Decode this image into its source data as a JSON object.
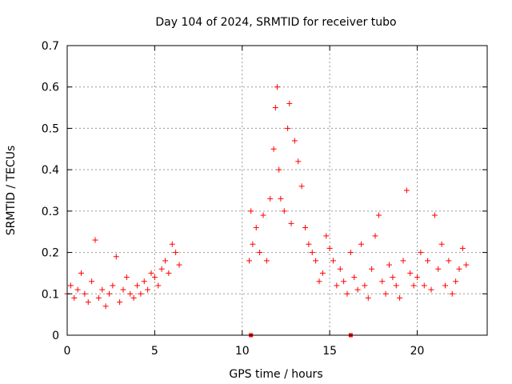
{
  "chart_data": {
    "type": "scatter",
    "title": "Day 104 of 2024, SRMTID for receiver tubo",
    "xlabel": "GPS time / hours",
    "ylabel": "SRMTID / TECUs",
    "xlim": [
      0,
      24
    ],
    "ylim": [
      0,
      0.7
    ],
    "x_ticks": [
      "0",
      "5",
      "10",
      "15",
      "20"
    ],
    "x_tick_values": [
      0,
      5,
      10,
      15,
      20
    ],
    "y_ticks": [
      "0",
      "0.1",
      "0.2",
      "0.3",
      "0.4",
      "0.5",
      "0.6",
      "0.7"
    ],
    "y_tick_values": [
      0,
      0.1,
      0.2,
      0.3,
      0.4,
      0.5,
      0.6,
      0.7
    ],
    "grid": true,
    "marker": "plus",
    "color": "#ff0000",
    "series": [
      {
        "name": "SRMTID",
        "x": [
          0.0,
          0.2,
          0.4,
          0.6,
          0.8,
          1.0,
          1.2,
          1.4,
          1.6,
          1.8,
          2.0,
          2.2,
          2.4,
          2.6,
          2.8,
          3.0,
          3.2,
          3.4,
          3.6,
          3.8,
          4.0,
          4.2,
          4.4,
          4.6,
          4.8,
          5.0,
          5.2,
          5.4,
          5.6,
          5.8,
          6.0,
          6.2,
          6.4,
          10.4,
          10.5,
          10.6,
          10.8,
          11.0,
          11.2,
          11.4,
          11.6,
          11.8,
          11.9,
          12.0,
          12.1,
          12.2,
          12.4,
          12.6,
          12.7,
          12.8,
          13.0,
          13.2,
          13.4,
          13.6,
          13.8,
          14.0,
          14.2,
          14.4,
          14.6,
          14.8,
          15.0,
          15.2,
          15.4,
          15.6,
          15.8,
          16.0,
          16.2,
          16.4,
          16.6,
          16.8,
          17.0,
          17.2,
          17.4,
          17.6,
          17.8,
          18.0,
          18.2,
          18.4,
          18.6,
          18.8,
          19.0,
          19.2,
          19.4,
          19.6,
          19.8,
          20.0,
          20.2,
          20.4,
          20.6,
          20.8,
          21.0,
          21.2,
          21.4,
          21.6,
          21.8,
          22.0,
          22.2,
          22.4,
          22.6,
          22.8
        ],
        "y": [
          0.1,
          0.12,
          0.09,
          0.11,
          0.15,
          0.1,
          0.08,
          0.13,
          0.23,
          0.09,
          0.11,
          0.07,
          0.1,
          0.12,
          0.19,
          0.08,
          0.11,
          0.14,
          0.1,
          0.09,
          0.12,
          0.1,
          0.13,
          0.11,
          0.15,
          0.14,
          0.12,
          0.16,
          0.18,
          0.15,
          0.22,
          0.2,
          0.17,
          0.18,
          0.3,
          0.22,
          0.26,
          0.2,
          0.29,
          0.18,
          0.33,
          0.45,
          0.55,
          0.6,
          0.4,
          0.33,
          0.3,
          0.5,
          0.56,
          0.27,
          0.47,
          0.42,
          0.36,
          0.26,
          0.22,
          0.2,
          0.18,
          0.13,
          0.15,
          0.24,
          0.21,
          0.18,
          0.12,
          0.16,
          0.13,
          0.1,
          0.2,
          0.14,
          0.11,
          0.22,
          0.12,
          0.09,
          0.16,
          0.24,
          0.29,
          0.13,
          0.1,
          0.17,
          0.14,
          0.12,
          0.09,
          0.18,
          0.35,
          0.15,
          0.12,
          0.14,
          0.2,
          0.12,
          0.18,
          0.11,
          0.29,
          0.16,
          0.22,
          0.12,
          0.18,
          0.1,
          0.13,
          0.16,
          0.21,
          0.17
        ]
      }
    ],
    "zero_markers_x": [
      10.5,
      16.2
    ]
  }
}
